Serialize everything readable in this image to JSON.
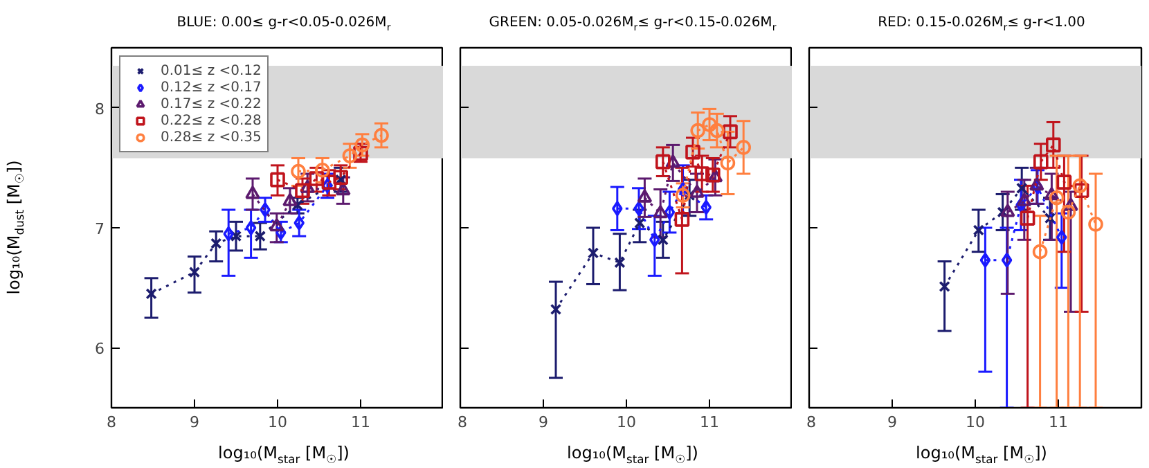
{
  "chart_data": [
    {
      "type": "line",
      "title": "BLUE: 0.00≤ g-r<0.05-0.026M$_{r}$",
      "xlabel": "log₁₀(M$_{star}$ [M$_{☉}$])",
      "ylabel": "log₁₀(M$_{dust}$ [M$_{☉}$])",
      "xlim": [
        8,
        12
      ],
      "xticks": [
        8,
        9,
        10,
        11
      ],
      "ylim": [
        5.5,
        8.5
      ],
      "yticks": [
        6,
        7,
        8
      ],
      "bands": [
        {
          "axis": "y",
          "from": 7.58,
          "to": 8.35,
          "color": "#d9d9d9"
        }
      ],
      "legend": "top left",
      "line_style": "dotted",
      "grid": false,
      "series": [
        {
          "name": "0.01≤ z <0.12",
          "color": "#1c1c6e",
          "marker": "cross",
          "x": [
            8.48,
            9.0,
            9.26,
            9.5,
            9.79,
            10.24,
            10.76
          ],
          "values": [
            6.45,
            6.63,
            6.87,
            6.93,
            6.93,
            7.19,
            7.4
          ],
          "errors": [
            [
              6.25,
              6.58
            ],
            [
              6.46,
              6.76
            ],
            [
              6.72,
              6.97
            ],
            [
              6.81,
              7.05
            ],
            [
              6.82,
              7.04
            ],
            [
              7.12,
              7.25
            ],
            [
              7.3,
              7.5
            ]
          ]
        },
        {
          "name": "0.12≤ z <0.17",
          "color": "#1a1aff",
          "marker": "diamond",
          "x": [
            9.41,
            9.68,
            9.85,
            10.04,
            10.26,
            10.6
          ],
          "values": [
            6.95,
            7.0,
            7.15,
            6.96,
            7.04,
            7.35
          ],
          "errors": [
            [
              6.6,
              7.15
            ],
            [
              6.75,
              7.15
            ],
            [
              7.05,
              7.25
            ],
            [
              6.88,
              7.05
            ],
            [
              6.93,
              7.15
            ],
            [
              7.25,
              7.45
            ]
          ]
        },
        {
          "name": "0.17≤ z <0.22",
          "color": "#5c1a6e",
          "marker": "triangle",
          "x": [
            9.7,
            9.99,
            10.15,
            10.36,
            10.79
          ],
          "values": [
            7.28,
            7.01,
            7.22,
            7.33,
            7.31
          ],
          "errors": [
            [
              7.15,
              7.41
            ],
            [
              6.88,
              7.12
            ],
            [
              7.12,
              7.33
            ],
            [
              7.22,
              7.45
            ],
            [
              7.2,
              7.42
            ]
          ]
        },
        {
          "name": "0.22≤ z <0.28",
          "color": "#c0141c",
          "marker": "square",
          "x": [
            10.0,
            10.3,
            10.47,
            10.62,
            10.76,
            11.0
          ],
          "values": [
            7.4,
            7.31,
            7.41,
            7.38,
            7.42,
            7.62
          ],
          "errors": [
            [
              7.27,
              7.52
            ],
            [
              7.2,
              7.41
            ],
            [
              7.3,
              7.5
            ],
            [
              7.27,
              7.48
            ],
            [
              7.32,
              7.52
            ],
            [
              7.55,
              7.7
            ]
          ]
        },
        {
          "name": "0.28≤ z <0.35",
          "color": "#ff7f3f",
          "marker": "circle",
          "x": [
            10.25,
            10.54,
            10.87,
            11.02,
            11.25
          ],
          "values": [
            7.47,
            7.48,
            7.6,
            7.69,
            7.77
          ],
          "errors": [
            [
              7.35,
              7.58
            ],
            [
              7.38,
              7.58
            ],
            [
              7.5,
              7.7
            ],
            [
              7.6,
              7.78
            ],
            [
              7.67,
              7.87
            ]
          ]
        }
      ]
    },
    {
      "type": "line",
      "title": "GREEN: 0.05-0.026M$_{r}$≤ g-r<0.15-0.026M$_{r}$",
      "xlabel": "log₁₀(M$_{star}$ [M$_{☉}$])",
      "xlim": [
        8,
        12
      ],
      "xticks": [
        8,
        9,
        10,
        11
      ],
      "ylim": [
        5.5,
        8.5
      ],
      "yticks": [
        6,
        7,
        8
      ],
      "tick_labels": "x",
      "bands": [
        {
          "axis": "y",
          "from": 7.58,
          "to": 8.35,
          "color": "#d9d9d9"
        }
      ],
      "line_style": "dotted",
      "grid": false,
      "series": [
        {
          "color": "#1c1c6e",
          "marker": "cross",
          "x": [
            9.15,
            9.6,
            9.92,
            10.16,
            10.44,
            10.76
          ],
          "values": [
            6.32,
            6.79,
            6.71,
            7.04,
            6.9,
            7.27
          ],
          "errors": [
            [
              5.75,
              6.55
            ],
            [
              6.53,
              7.0
            ],
            [
              6.48,
              6.95
            ],
            [
              6.88,
              7.15
            ],
            [
              6.75,
              7.05
            ],
            [
              7.1,
              7.4
            ]
          ]
        },
        {
          "color": "#1a1aff",
          "marker": "diamond",
          "x": [
            9.89,
            10.15,
            10.34,
            10.52,
            10.68,
            10.96
          ],
          "values": [
            7.16,
            7.16,
            6.9,
            7.13,
            7.32,
            7.17
          ],
          "errors": [
            [
              6.98,
              7.34
            ],
            [
              6.99,
              7.33
            ],
            [
              6.6,
              7.1
            ],
            [
              6.96,
              7.3
            ],
            [
              7.12,
              7.52
            ],
            [
              7.07,
              7.27
            ]
          ]
        },
        {
          "color": "#5c1a6e",
          "marker": "triangle",
          "x": [
            10.22,
            10.41,
            10.56,
            10.85,
            11.07
          ],
          "values": [
            7.25,
            7.12,
            7.54,
            7.29,
            7.42
          ],
          "errors": [
            [
              7.09,
              7.41
            ],
            [
              6.92,
              7.32
            ],
            [
              7.39,
              7.69
            ],
            [
              7.13,
              7.45
            ],
            [
              7.27,
              7.57
            ]
          ]
        },
        {
          "color": "#c0141c",
          "marker": "square",
          "x": [
            10.44,
            10.67,
            10.8,
            10.91,
            11.04,
            11.25
          ],
          "values": [
            7.55,
            7.07,
            7.63,
            7.45,
            7.44,
            7.8
          ],
          "errors": [
            [
              7.43,
              7.67
            ],
            [
              6.62,
              7.5
            ],
            [
              7.51,
              7.75
            ],
            [
              7.3,
              7.6
            ],
            [
              7.3,
              7.58
            ],
            [
              7.67,
              7.93
            ]
          ]
        },
        {
          "color": "#ff7f3f",
          "marker": "circle",
          "x": [
            10.68,
            10.86,
            11.0,
            11.09,
            11.22,
            11.41
          ],
          "values": [
            7.27,
            7.81,
            7.86,
            7.81,
            7.54,
            7.67
          ],
          "errors": [
            [
              7.17,
              7.37
            ],
            [
              7.66,
              7.96
            ],
            [
              7.73,
              7.99
            ],
            [
              7.67,
              7.95
            ],
            [
              7.28,
              7.8
            ],
            [
              7.45,
              7.89
            ]
          ]
        }
      ]
    },
    {
      "type": "line",
      "title": "RED: 0.15-0.026M$_{r}$≤ g-r<1.00",
      "xlabel": "log₁₀(M$_{star}$ [M$_{☉}$])",
      "xlim": [
        8,
        12
      ],
      "xticks": [
        8,
        9,
        10,
        11
      ],
      "ylim": [
        5.5,
        8.5
      ],
      "yticks": [
        6,
        7,
        8
      ],
      "tick_labels": "x",
      "bands": [
        {
          "axis": "y",
          "from": 7.58,
          "to": 8.35,
          "color": "#d9d9d9"
        }
      ],
      "line_style": "dotted",
      "grid": false,
      "series": [
        {
          "color": "#1c1c6e",
          "marker": "cross",
          "x": [
            9.63,
            10.04,
            10.33,
            10.56,
            10.9
          ],
          "values": [
            6.51,
            6.98,
            7.13,
            7.33,
            7.08
          ],
          "errors": [
            [
              6.14,
              6.72
            ],
            [
              6.8,
              7.15
            ],
            [
              6.98,
              7.28
            ],
            [
              7.15,
              7.5
            ],
            [
              6.9,
              7.25
            ]
          ]
        },
        {
          "color": "#1a1aff",
          "marker": "diamond",
          "x": [
            10.12,
            10.38,
            10.55,
            10.75,
            11.04
          ],
          "values": [
            6.73,
            6.73,
            7.19,
            7.34,
            6.92
          ],
          "errors": [
            [
              5.8,
              7.0
            ],
            [
              5.5,
              7.0
            ],
            [
              6.98,
              7.4
            ],
            [
              7.2,
              7.48
            ],
            [
              6.5,
              7.12
            ]
          ]
        },
        {
          "color": "#5c1a6e",
          "marker": "triangle",
          "x": [
            10.39,
            10.59,
            10.74,
            10.92,
            11.15
          ],
          "values": [
            7.13,
            7.22,
            7.35,
            7.27,
            7.18
          ],
          "errors": [
            [
              6.45,
              7.3
            ],
            [
              6.9,
              7.4
            ],
            [
              7.2,
              7.5
            ],
            [
              6.9,
              7.45
            ],
            [
              6.3,
              7.3
            ]
          ]
        },
        {
          "color": "#c0141c",
          "marker": "square",
          "x": [
            10.63,
            10.79,
            10.94,
            11.07,
            11.28
          ],
          "values": [
            7.08,
            7.55,
            7.69,
            7.38,
            7.31
          ],
          "errors": [
            [
              5.5,
              7.35
            ],
            [
              7.4,
              7.7
            ],
            [
              7.5,
              7.88
            ],
            [
              6.8,
              7.6
            ],
            [
              6.3,
              7.6
            ]
          ]
        },
        {
          "color": "#ff7f3f",
          "marker": "circle",
          "x": [
            10.78,
            10.98,
            11.12,
            11.26,
            11.45
          ],
          "values": [
            6.8,
            7.25,
            7.13,
            7.35,
            7.03
          ],
          "errors": [
            [
              5.5,
              7.1
            ],
            [
              5.5,
              7.6
            ],
            [
              5.5,
              7.6
            ],
            [
              5.5,
              7.6
            ],
            [
              5.5,
              7.45
            ]
          ]
        }
      ]
    }
  ]
}
